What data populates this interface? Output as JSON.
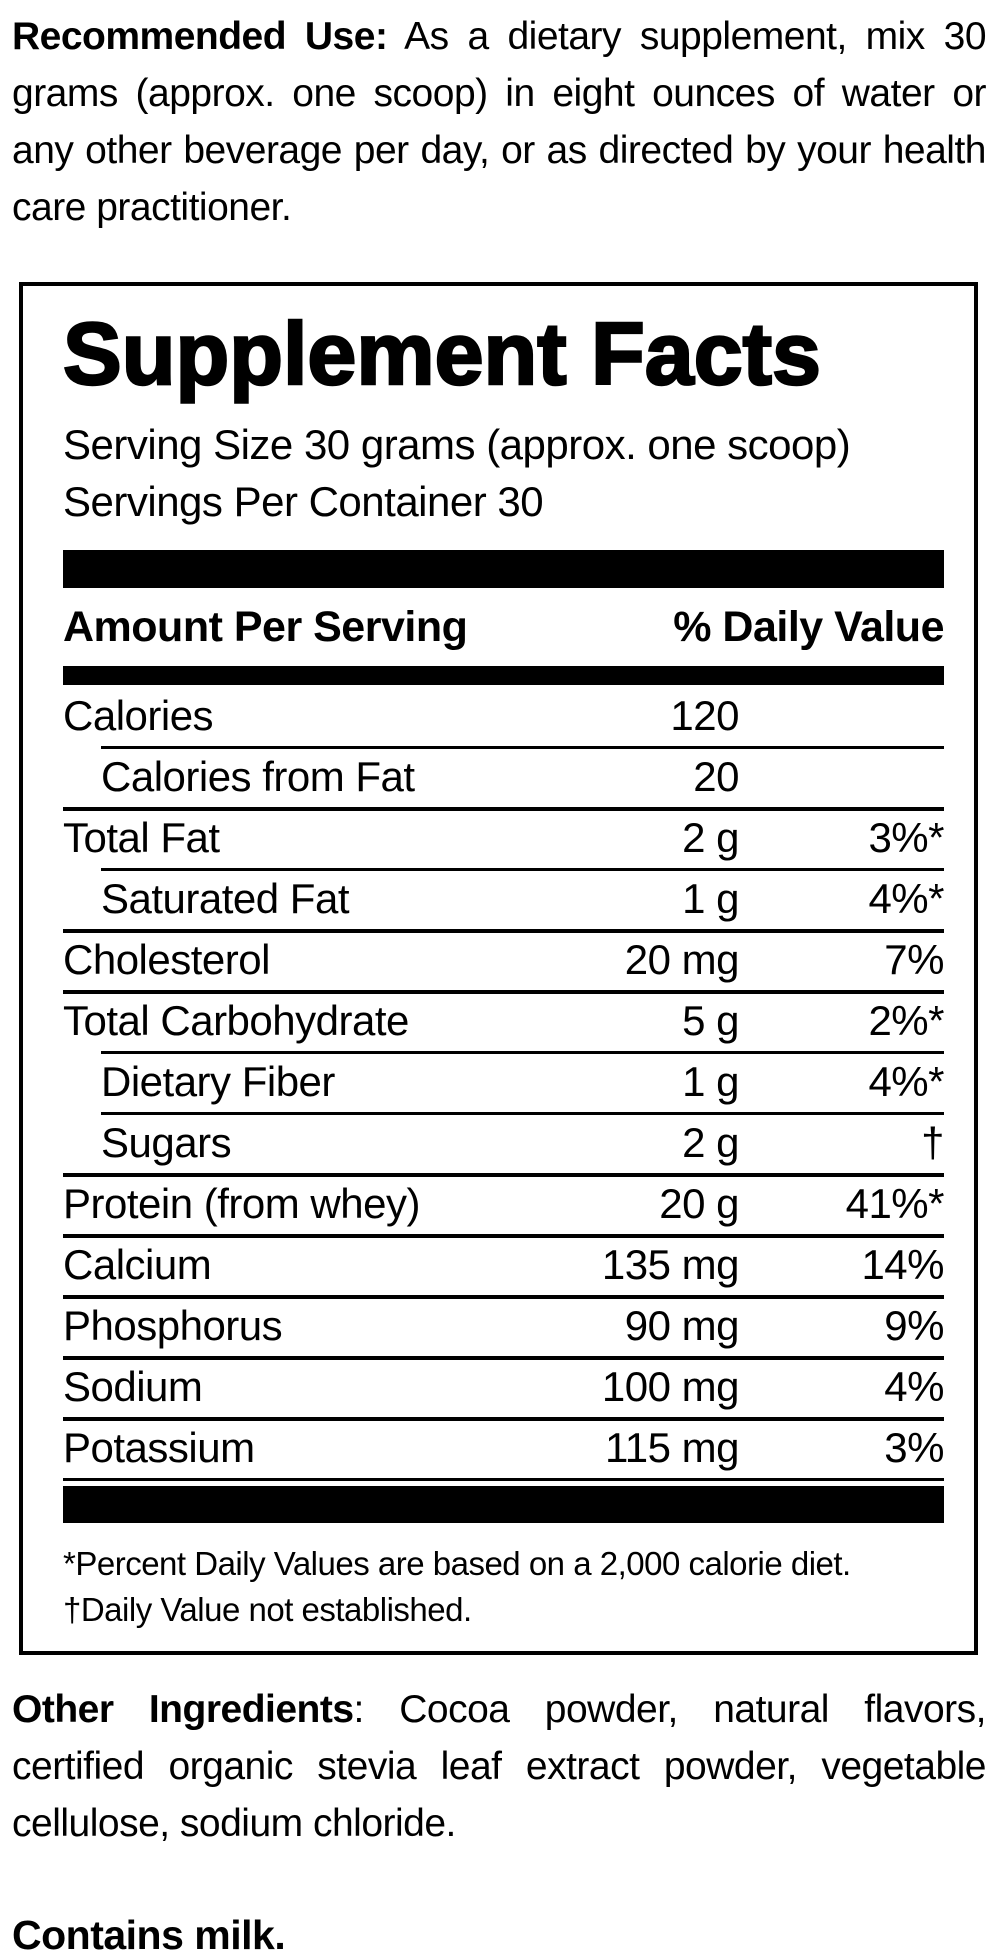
{
  "colors": {
    "ink": "#000000",
    "paper": "#ffffff"
  },
  "recommended_use": {
    "label": "Recommended Use:",
    "text": "As a dietary supplement, mix 30 grams (approx. one scoop) in eight ounces of water or any other beverage per day, or as directed by your health care practitioner."
  },
  "supplement_facts": {
    "title": "Supplement Facts",
    "serving_size": "Serving Size 30 grams (approx. one scoop)",
    "servings_per_container": "Servings Per Container 30",
    "columns": {
      "amount_header": "Amount Per Serving",
      "dv_header": "% Daily Value"
    },
    "rows": [
      {
        "name": "Calories",
        "amount": "120",
        "dv": ""
      },
      {
        "name": "Calories from Fat",
        "amount": "20",
        "dv": ""
      },
      {
        "name": "Total Fat",
        "amount": "2 g",
        "dv": "3%*"
      },
      {
        "name": "Saturated Fat",
        "amount": "1 g",
        "dv": "4%*"
      },
      {
        "name": "Cholesterol",
        "amount": "20 mg",
        "dv": "7%"
      },
      {
        "name": "Total Carbohydrate",
        "amount": "5 g",
        "dv": "2%*"
      },
      {
        "name": "Dietary Fiber",
        "amount": "1 g",
        "dv": "4%*"
      },
      {
        "name": "Sugars",
        "amount": "2 g",
        "dv": "†"
      },
      {
        "name": "Protein (from whey)",
        "amount": "20 g",
        "dv": "41%*"
      },
      {
        "name": "Calcium",
        "amount": "135 mg",
        "dv": "14%"
      },
      {
        "name": "Phosphorus",
        "amount": "90 mg",
        "dv": "9%"
      },
      {
        "name": "Sodium",
        "amount": "100 mg",
        "dv": "4%"
      },
      {
        "name": "Potassium",
        "amount": "115 mg",
        "dv": "3%"
      }
    ],
    "footnotes": [
      "*Percent Daily Values are based on a 2,000 calorie diet.",
      "†Daily Value not established."
    ]
  },
  "other_ingredients": {
    "label": "Other Ingredients",
    "text": ": Cocoa powder, natural flavors, certified organic stevia leaf extract powder, vegetable cellulose, sodium chloride."
  },
  "allergen": "Contains milk."
}
